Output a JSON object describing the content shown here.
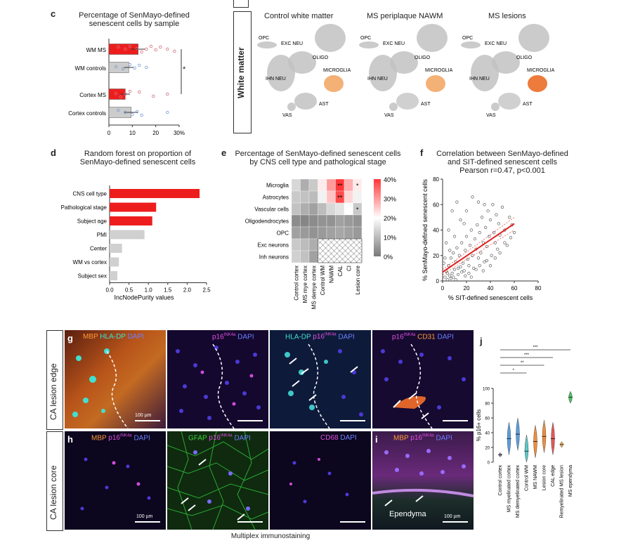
{
  "panel_c": {
    "label": "c",
    "title_l1": "Percentage of SenMayo-defined",
    "title_l2": "senescent cells by sample",
    "signif": "*"
  },
  "panel_white_matter": {
    "row_label": "White matter",
    "columns": [
      "Control white matter",
      "MS periplaque NAWM",
      "MS lesions"
    ],
    "clusters": [
      "OPC",
      "EXC NEU",
      "OLIGO",
      "MICROGLIA",
      "IHN NEU",
      "AST",
      "VAS"
    ]
  },
  "panel_d": {
    "label": "d",
    "title_l1": "Random forest on proportion of",
    "title_l2": "SenMayo-defined senescent cells"
  },
  "panel_e": {
    "label": "e",
    "title_l1": "Percentage of SenMayo-defined senescent cells",
    "title_l2": "by CNS cell type and pathological stage",
    "rows": [
      "Microglia",
      "Astrocytes",
      "Vascular cells",
      "Oligodendrocytes",
      "OPC",
      "Exc neurons",
      "Inh neurons"
    ],
    "cols": [
      "Control cortex",
      "MS mye cortex",
      "MS demye cortex",
      "Control WM",
      "NAWM",
      "CAL",
      "CI",
      "Lesion core"
    ],
    "scale_ticks": [
      "40%",
      "30%",
      "20%",
      "10%",
      "0%"
    ],
    "stars": [
      "**",
      "*",
      "**",
      "*"
    ]
  },
  "panel_f": {
    "label": "f",
    "title_l1": "Correlation between SenMayo-defined",
    "title_l2": "and SIT-defined senescent cells",
    "title_l3": "Pearson r=0.47, p<0.001"
  },
  "panel_g": {
    "label": "g",
    "row_label": "CA lesion edge",
    "scale_text": "100 µm"
  },
  "panel_h": {
    "label": "h",
    "row_label": "CA lesion core",
    "scale_text": "100 µm",
    "caption": "Multiplex immunostaining"
  },
  "panel_i": {
    "label": "i",
    "ependyma": "Ependyma",
    "scale_text": "100 µm"
  },
  "panel_j": {
    "label": "j",
    "stars": [
      "***",
      "***",
      "**",
      "*"
    ]
  },
  "chart_data": [
    {
      "panel": "c",
      "type": "bar",
      "orientation": "horizontal",
      "categories": [
        "WM MS",
        "WM controls",
        "Cortex MS",
        "Cortex controls"
      ],
      "values": [
        12.5,
        8.5,
        7,
        9.5
      ],
      "errors": [
        3,
        2,
        2,
        3
      ],
      "colors": [
        "#ee1d1d",
        "#cccccc",
        "#ee1d1d",
        "#cccccc"
      ],
      "xlim": [
        0,
        30
      ],
      "xticks": [
        "0",
        "10",
        "20",
        "30%"
      ],
      "points": [
        [
          4,
          7,
          9,
          12,
          14,
          16,
          18,
          20,
          22,
          25,
          28
        ],
        [
          3,
          6,
          9,
          11,
          13,
          16
        ],
        [
          3,
          5,
          7,
          9,
          13,
          19,
          25
        ],
        [
          4,
          7,
          10,
          12,
          14,
          25
        ]
      ]
    },
    {
      "panel": "d",
      "type": "bar",
      "orientation": "horizontal",
      "categories": [
        "CNS cell type",
        "Pathological stage",
        "Subject age",
        "PMI",
        "Center",
        "WM vs cortex",
        "Subject sex"
      ],
      "values": [
        2.32,
        1.2,
        1.1,
        0.9,
        0.32,
        0.24,
        0.2
      ],
      "colors": [
        "#ee1d1d",
        "#ee1d1d",
        "#ee1d1d",
        "#d0d0d0",
        "#d0d0d0",
        "#d0d0d0",
        "#d0d0d0"
      ],
      "xlim": [
        0,
        2.5
      ],
      "xticks": [
        "0.0",
        "0.5",
        "1.0",
        "1.5",
        "2.0",
        "2.5"
      ],
      "xlabel": "IncNodePurity values"
    },
    {
      "panel": "e",
      "type": "heatmap",
      "rows": [
        "Microglia",
        "Astrocytes",
        "Vascular cells",
        "Oligodendrocytes",
        "OPC",
        "Exc neurons",
        "Inh neurons"
      ],
      "cols": [
        "Control cortex",
        "MS mye cortex",
        "MS demye cortex",
        "Control WM",
        "NAWM",
        "CAL",
        "CI",
        "Lesion core"
      ],
      "values": [
        [
          14,
          8,
          12,
          22,
          30,
          40,
          28,
          22
        ],
        [
          12,
          11,
          10,
          18,
          26,
          38,
          24,
          18
        ],
        [
          11,
          8,
          6,
          10,
          14,
          16,
          20,
          12
        ],
        [
          3,
          2,
          3,
          4,
          4,
          6,
          5,
          4
        ],
        [
          6,
          5,
          4,
          5,
          6,
          7,
          6,
          5
        ],
        [
          12,
          10,
          8,
          null,
          null,
          null,
          null,
          null
        ],
        [
          13,
          11,
          6,
          null,
          null,
          null,
          null,
          null
        ]
      ],
      "zlim": [
        0,
        40
      ]
    },
    {
      "panel": "f",
      "type": "scatter",
      "xlabel": "% SIT-defined senescent cells",
      "ylabel": "% SenMayo-defined senescent cells",
      "xlim": [
        0,
        80
      ],
      "ylim": [
        0,
        80
      ],
      "xticks": [
        "0",
        "20",
        "40",
        "60",
        "80"
      ],
      "yticks": [
        "0",
        "20",
        "40",
        "60",
        "80"
      ],
      "fit": {
        "x": [
          0,
          60
        ],
        "y": [
          7,
          45
        ]
      },
      "points": [
        [
          2,
          3
        ],
        [
          3,
          8
        ],
        [
          4,
          1
        ],
        [
          5,
          12
        ],
        [
          6,
          4
        ],
        [
          7,
          18
        ],
        [
          8,
          6
        ],
        [
          9,
          22
        ],
        [
          10,
          9
        ],
        [
          11,
          15
        ],
        [
          12,
          26
        ],
        [
          13,
          5
        ],
        [
          14,
          20
        ],
        [
          15,
          11
        ],
        [
          16,
          30
        ],
        [
          17,
          14
        ],
        [
          18,
          8
        ],
        [
          19,
          24
        ],
        [
          20,
          35
        ],
        [
          21,
          17
        ],
        [
          22,
          12
        ],
        [
          23,
          28
        ],
        [
          24,
          40
        ],
        [
          25,
          20
        ],
        [
          26,
          10
        ],
        [
          27,
          33
        ],
        [
          28,
          25
        ],
        [
          29,
          44
        ],
        [
          30,
          18
        ],
        [
          31,
          38
        ],
        [
          32,
          22
        ],
        [
          33,
          50
        ],
        [
          34,
          30
        ],
        [
          35,
          15
        ],
        [
          36,
          42
        ],
        [
          37,
          27
        ],
        [
          38,
          55
        ],
        [
          39,
          35
        ],
        [
          40,
          48
        ],
        [
          41,
          20
        ],
        [
          42,
          60
        ],
        [
          43,
          38
        ],
        [
          44,
          30
        ],
        [
          45,
          52
        ],
        [
          46,
          25
        ],
        [
          47,
          45
        ],
        [
          48,
          36
        ],
        [
          50,
          58
        ],
        [
          52,
          40
        ],
        [
          54,
          28
        ],
        [
          56,
          50
        ],
        [
          58,
          44
        ],
        [
          60,
          38
        ],
        [
          3,
          30
        ],
        [
          5,
          40
        ],
        [
          8,
          55
        ],
        [
          12,
          62
        ],
        [
          15,
          48
        ],
        [
          10,
          35
        ],
        [
          6,
          24
        ],
        [
          1,
          14
        ],
        [
          2,
          18
        ],
        [
          20,
          55
        ],
        [
          25,
          66
        ],
        [
          18,
          45
        ],
        [
          30,
          62
        ],
        [
          35,
          60
        ],
        [
          4,
          6
        ],
        [
          7,
          2
        ],
        [
          9,
          3
        ],
        [
          11,
          1
        ],
        [
          13,
          10
        ],
        [
          16,
          7
        ],
        [
          19,
          4
        ],
        [
          22,
          6
        ],
        [
          24,
          3
        ],
        [
          28,
          9
        ],
        [
          31,
          12
        ],
        [
          34,
          8
        ],
        [
          37,
          16
        ],
        [
          40,
          12
        ],
        [
          44,
          18
        ],
        [
          48,
          22
        ],
        [
          52,
          30
        ],
        [
          57,
          34
        ]
      ]
    },
    {
      "panel": "j",
      "type": "violin",
      "ylabel": "% p16+ cells",
      "ylim": [
        0,
        100
      ],
      "yticks": [
        "0",
        "20",
        "40",
        "60",
        "80",
        "100"
      ],
      "categories": [
        "Control cortex",
        "MS myelinated cortex",
        "MS demyelinated cortex",
        "Control WM",
        "MS NAWM",
        "Lesion core",
        "CAL edge",
        "Remyelinated MS lesion",
        "MS ependyma"
      ],
      "medians": [
        10,
        32,
        38,
        15,
        28,
        35,
        32,
        24,
        88
      ],
      "colors": [
        "#7f7f9f",
        "#3f8fd8",
        "#3f8fd8",
        "#40c0c0",
        "#f07a1a",
        "#f07a1a",
        "#e23a3a",
        "#f0a030",
        "#2fb84a"
      ]
    }
  ]
}
